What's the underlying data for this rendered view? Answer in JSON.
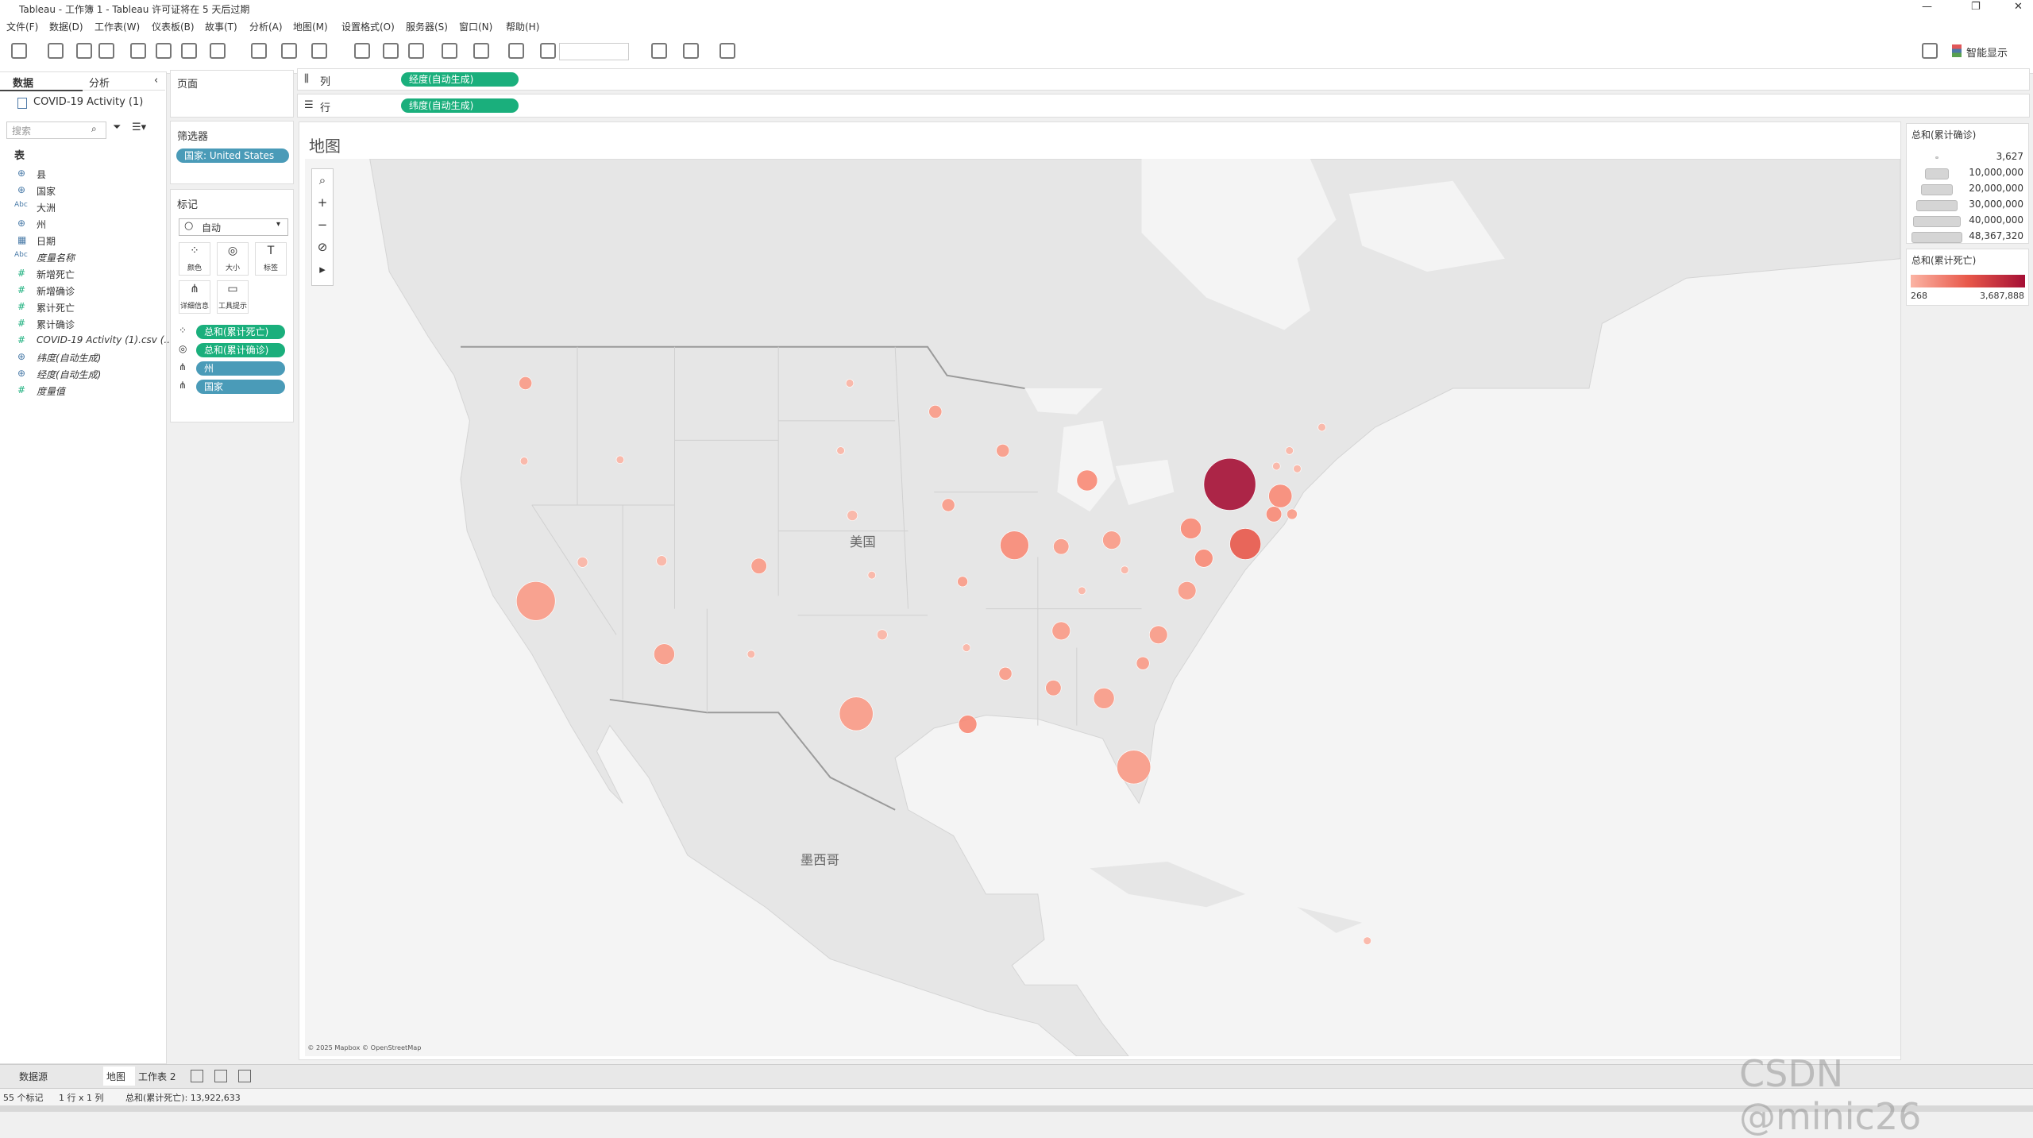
{
  "window": {
    "title": "Tableau - 工作簿 1 - Tableau 许可证将在 5 天后过期"
  },
  "menu": [
    "文件(F)",
    "数据(D)",
    "工作表(W)",
    "仪表板(B)",
    "故事(T)",
    "分析(A)",
    "地图(M)",
    "设置格式(O)",
    "服务器(S)",
    "窗口(N)",
    "帮助(H)"
  ],
  "toolbar": {
    "smart_show": "智能显示"
  },
  "data_pane": {
    "tabs": [
      "数据",
      "分析"
    ],
    "source": "COVID-19 Activity (1)",
    "search_placeholder": "搜索",
    "section": "表",
    "fields": [
      {
        "icon": "⊕",
        "name": "县",
        "italic": false
      },
      {
        "icon": "⊕",
        "name": "国家",
        "italic": false
      },
      {
        "icon": "Abc",
        "name": "大洲",
        "italic": false
      },
      {
        "icon": "⊕",
        "name": "州",
        "italic": false
      },
      {
        "icon": "▦",
        "name": "日期",
        "italic": false
      },
      {
        "icon": "Abc",
        "name": "度量名称",
        "italic": true
      },
      {
        "icon": "#",
        "name": "新增死亡",
        "italic": false
      },
      {
        "icon": "#",
        "name": "新增确诊",
        "italic": false
      },
      {
        "icon": "#",
        "name": "累计死亡",
        "italic": false
      },
      {
        "icon": "#",
        "name": "累计确诊",
        "italic": false
      },
      {
        "icon": "#",
        "name": "COVID-19 Activity (1).csv (...",
        "italic": true
      },
      {
        "icon": "⊕",
        "name": "纬度(自动生成)",
        "italic": true
      },
      {
        "icon": "⊕",
        "name": "经度(自动生成)",
        "italic": true
      },
      {
        "icon": "#",
        "name": "度量值",
        "italic": true
      }
    ]
  },
  "pages_card": {
    "title": "页面"
  },
  "filters_card": {
    "title": "筛选器",
    "pills": [
      "国家: United States"
    ]
  },
  "marks_card": {
    "title": "标记",
    "mark_type": "自动",
    "buttons": [
      "颜色",
      "大小",
      "标签",
      "详细信息",
      "工具提示"
    ],
    "pills": [
      {
        "text": "总和(累计死亡)",
        "color": "#1aaf7c"
      },
      {
        "text": "总和(累计确诊)",
        "color": "#1aaf7c"
      },
      {
        "text": "州",
        "color": "#4a9bb8"
      },
      {
        "text": "国家",
        "color": "#4a9bb8"
      }
    ]
  },
  "shelves": {
    "columns": {
      "label": "列",
      "pill": "经度(自动生成)"
    },
    "rows": {
      "label": "行",
      "pill": "纬度(自动生成)"
    }
  },
  "view": {
    "title": "地图",
    "labels": [
      "美国",
      "墨西哥"
    ],
    "attribution": "© 2025 Mapbox © OpenStreetMap"
  },
  "legends": {
    "size": {
      "title": "总和(累计确诊)",
      "items": [
        "3,627",
        "10,000,000",
        "20,000,000",
        "30,000,000",
        "40,000,000",
        "48,367,320"
      ]
    },
    "color": {
      "title": "总和(累计死亡)",
      "min": "268",
      "max": "3,687,888"
    }
  },
  "tabs": [
    "数据源",
    "地图",
    "工作表 2"
  ],
  "status": [
    "55 个标记",
    "1 行 x 1 列",
    "总和(累计死亡): 13,922,633"
  ],
  "watermark": "CSDN @minic26"
}
